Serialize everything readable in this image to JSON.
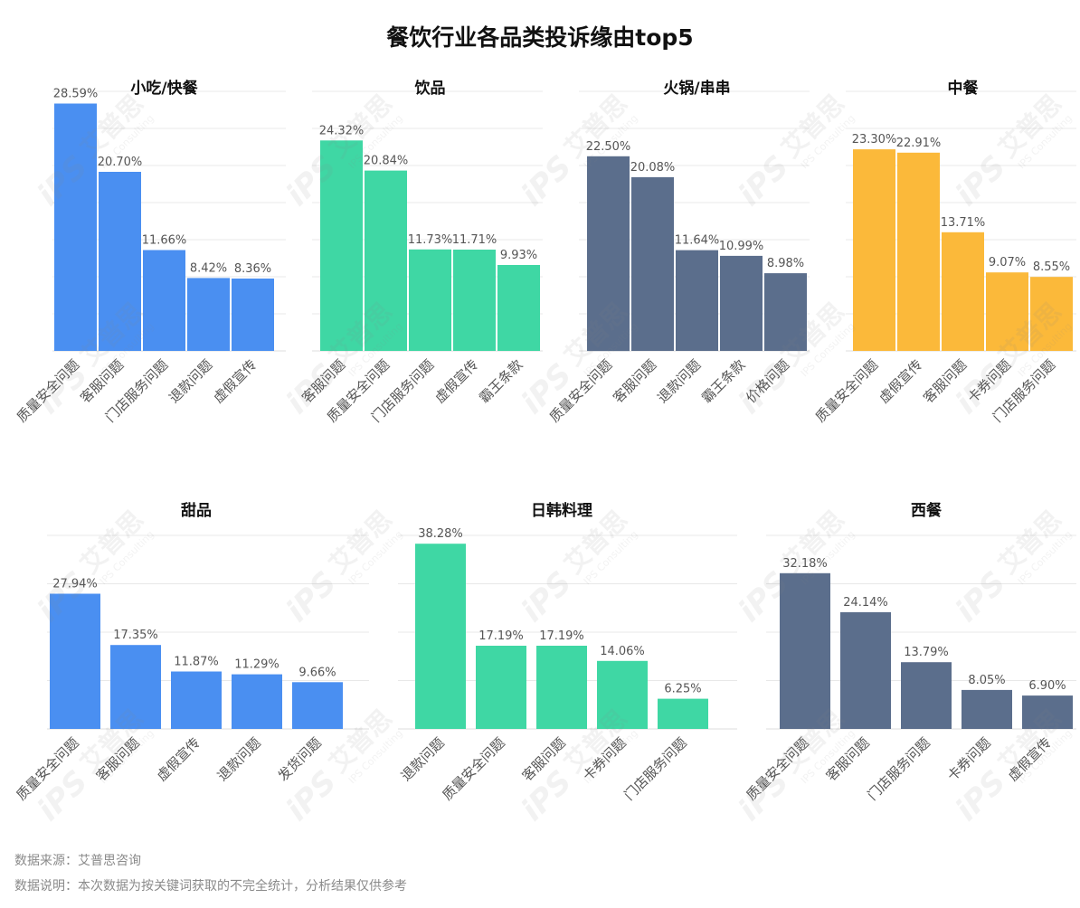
{
  "page": {
    "title": "餐饮行业各品类投诉缘由top5",
    "source": "数据来源：艾普思咨询",
    "note": "数据说明：本次数据为按关键词获取的不完全统计，分析结果仅供参考"
  },
  "watermark": {
    "logo": "iPS",
    "name": "艾普思",
    "subtitle": "IPS Consulting"
  },
  "colors": {
    "blue": "#4a8ff1",
    "green": "#3fd7a4",
    "slate": "#5b6e8c",
    "yellow": "#fbb93a",
    "grid": "#e8e8e8",
    "label": "#555555"
  },
  "chart_data": [
    {
      "type": "bar",
      "title": "小吃/快餐",
      "color": "#4a8ff1",
      "categories": [
        "质量安全问题",
        "客服问题",
        "门店服务问题",
        "退款问题",
        "虚假宣传"
      ],
      "values": [
        28.59,
        20.7,
        11.66,
        8.42,
        8.36
      ],
      "data_labels": [
        "28.59%",
        "20.70%",
        "11.66%",
        "8.42%",
        "8.36%"
      ],
      "ylim": [
        0,
        30
      ],
      "grid": true
    },
    {
      "type": "bar",
      "title": "饮品",
      "color": "#3fd7a4",
      "categories": [
        "客服问题",
        "质量安全问题",
        "门店服务问题",
        "虚假宣传",
        "霸王条款"
      ],
      "values": [
        24.32,
        20.84,
        11.73,
        11.71,
        9.93
      ],
      "data_labels": [
        "24.32%",
        "20.84%",
        "11.73%",
        "11.71%",
        "9.93%"
      ],
      "ylim": [
        0,
        30
      ],
      "grid": true
    },
    {
      "type": "bar",
      "title": "火锅/串串",
      "color": "#5b6e8c",
      "categories": [
        "质量安全问题",
        "客服问题",
        "退款问题",
        "霸王条款",
        "价格问题"
      ],
      "values": [
        22.5,
        20.08,
        11.64,
        10.99,
        8.98
      ],
      "data_labels": [
        "22.50%",
        "20.08%",
        "11.64%",
        "10.99%",
        "8.98%"
      ],
      "ylim": [
        0,
        30
      ],
      "grid": true
    },
    {
      "type": "bar",
      "title": "中餐",
      "color": "#fbb93a",
      "categories": [
        "质量安全问题",
        "虚假宣传",
        "客服问题",
        "卡券问题",
        "门店服务问题"
      ],
      "values": [
        23.3,
        22.91,
        13.71,
        9.07,
        8.55
      ],
      "data_labels": [
        "23.30%",
        "22.91%",
        "13.71%",
        "9.07%",
        "8.55%"
      ],
      "ylim": [
        0,
        30
      ],
      "grid": true
    },
    {
      "type": "bar",
      "title": "甜品",
      "color": "#4a8ff1",
      "categories": [
        "质量安全问题",
        "客服问题",
        "虚假宣传",
        "退款问题",
        "发货问题"
      ],
      "values": [
        27.94,
        17.35,
        11.87,
        11.29,
        9.66
      ],
      "data_labels": [
        "27.94%",
        "17.35%",
        "11.87%",
        "11.29%",
        "9.66%"
      ],
      "ylim": [
        0,
        40
      ],
      "grid": true
    },
    {
      "type": "bar",
      "title": "日韩料理",
      "color": "#3fd7a4",
      "categories": [
        "退款问题",
        "质量安全问题",
        "客服问题",
        "卡券问题",
        "门店服务问题"
      ],
      "values": [
        38.28,
        17.19,
        17.19,
        14.06,
        6.25
      ],
      "data_labels": [
        "38.28%",
        "17.19%",
        "17.19%",
        "14.06%",
        "6.25%"
      ],
      "ylim": [
        0,
        40
      ],
      "grid": true
    },
    {
      "type": "bar",
      "title": "西餐",
      "color": "#5b6e8c",
      "categories": [
        "质量安全问题",
        "客服问题",
        "门店服务问题",
        "卡券问题",
        "虚假宣传"
      ],
      "values": [
        32.18,
        24.14,
        13.79,
        8.05,
        6.9
      ],
      "data_labels": [
        "32.18%",
        "24.14%",
        "13.79%",
        "8.05%",
        "6.90%"
      ],
      "ylim": [
        0,
        40
      ],
      "grid": true
    }
  ]
}
